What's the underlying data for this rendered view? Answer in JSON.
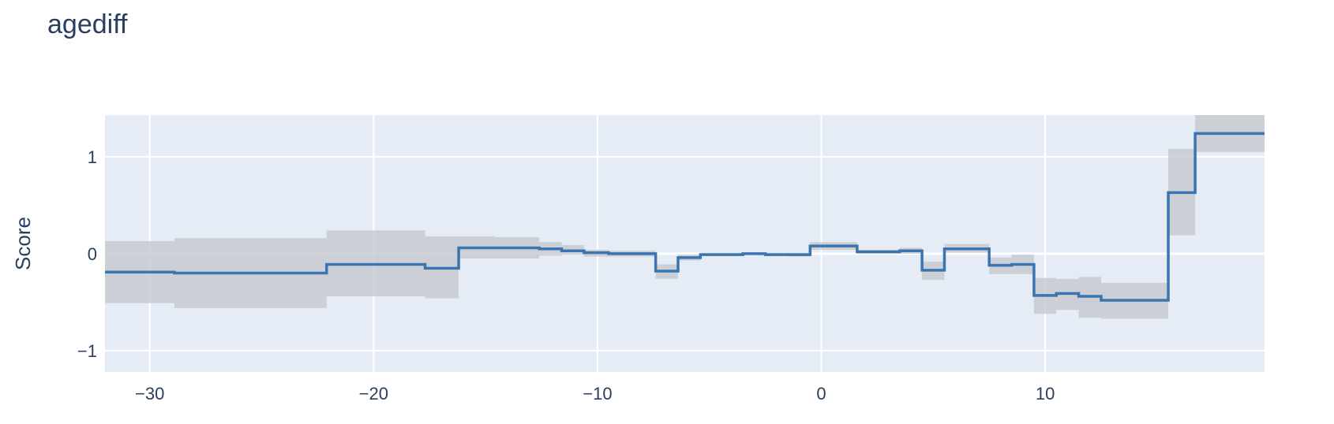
{
  "chart_data": {
    "type": "line",
    "line_shape": "step (hv)",
    "title": "agediff",
    "xlabel": "",
    "ylabel": "Score",
    "xlim": [
      -32,
      19.8
    ],
    "ylim": [
      -1.22,
      1.43
    ],
    "grid": true,
    "plot_background": "#e5ecf6",
    "line_color": "#3b75af",
    "band_color": "#c8cbd0",
    "x_ticks": [
      {
        "value": -30,
        "label": "−30"
      },
      {
        "value": -20,
        "label": "−20"
      },
      {
        "value": -10,
        "label": "−10"
      },
      {
        "value": 0,
        "label": "0"
      },
      {
        "value": 10,
        "label": "10"
      }
    ],
    "y_ticks": [
      {
        "value": 1,
        "label": "1"
      },
      {
        "value": 0,
        "label": "0"
      },
      {
        "value": -1,
        "label": "−1"
      }
    ],
    "series": [
      {
        "segments": [
          {
            "x0": -32.0,
            "x1": -28.9,
            "score": -0.19,
            "lower": -0.51,
            "upper": 0.13
          },
          {
            "x0": -28.9,
            "x1": -22.1,
            "score": -0.2,
            "lower": -0.56,
            "upper": 0.16
          },
          {
            "x0": -22.1,
            "x1": -17.7,
            "score": -0.11,
            "lower": -0.44,
            "upper": 0.24
          },
          {
            "x0": -17.7,
            "x1": -16.2,
            "score": -0.15,
            "lower": -0.46,
            "upper": 0.18
          },
          {
            "x0": -16.2,
            "x1": -14.6,
            "score": 0.06,
            "lower": -0.05,
            "upper": 0.18
          },
          {
            "x0": -14.6,
            "x1": -12.6,
            "score": 0.06,
            "lower": -0.05,
            "upper": 0.17
          },
          {
            "x0": -12.6,
            "x1": -11.6,
            "score": 0.05,
            "lower": -0.02,
            "upper": 0.12
          },
          {
            "x0": -11.6,
            "x1": -10.6,
            "score": 0.03,
            "lower": -0.01,
            "upper": 0.09
          },
          {
            "x0": -10.6,
            "x1": -9.5,
            "score": 0.01,
            "lower": -0.03,
            "upper": 0.04
          },
          {
            "x0": -9.5,
            "x1": -7.4,
            "score": 0.0,
            "lower": -0.03,
            "upper": 0.03
          },
          {
            "x0": -7.4,
            "x1": -6.4,
            "score": -0.18,
            "lower": -0.26,
            "upper": -0.11
          },
          {
            "x0": -6.4,
            "x1": -5.4,
            "score": -0.04,
            "lower": -0.07,
            "upper": -0.01
          },
          {
            "x0": -5.4,
            "x1": -3.5,
            "score": -0.01,
            "lower": -0.02,
            "upper": 0.01
          },
          {
            "x0": -3.5,
            "x1": -2.5,
            "score": 0.0,
            "lower": -0.01,
            "upper": 0.01
          },
          {
            "x0": -2.5,
            "x1": -1.5,
            "score": -0.01,
            "lower": -0.02,
            "upper": 0.01
          },
          {
            "x0": -1.5,
            "x1": -0.5,
            "score": -0.01,
            "lower": -0.03,
            "upper": 0.01
          },
          {
            "x0": -0.5,
            "x1": 1.6,
            "score": 0.08,
            "lower": 0.04,
            "upper": 0.12
          },
          {
            "x0": 1.6,
            "x1": 3.5,
            "score": 0.02,
            "lower": 0.0,
            "upper": 0.04
          },
          {
            "x0": 3.5,
            "x1": 4.5,
            "score": 0.03,
            "lower": 0.0,
            "upper": 0.06
          },
          {
            "x0": 4.5,
            "x1": 5.5,
            "score": -0.17,
            "lower": -0.27,
            "upper": -0.08
          },
          {
            "x0": 5.5,
            "x1": 7.5,
            "score": 0.05,
            "lower": 0.01,
            "upper": 0.1
          },
          {
            "x0": 7.5,
            "x1": 8.5,
            "score": -0.12,
            "lower": -0.21,
            "upper": -0.04
          },
          {
            "x0": 8.5,
            "x1": 9.5,
            "score": -0.11,
            "lower": -0.21,
            "upper": -0.01
          },
          {
            "x0": 9.5,
            "x1": 10.5,
            "score": -0.43,
            "lower": -0.62,
            "upper": -0.25
          },
          {
            "x0": 10.5,
            "x1": 11.5,
            "score": -0.41,
            "lower": -0.58,
            "upper": -0.26
          },
          {
            "x0": 11.5,
            "x1": 12.5,
            "score": -0.44,
            "lower": -0.66,
            "upper": -0.24
          },
          {
            "x0": 12.5,
            "x1": 15.5,
            "score": -0.48,
            "lower": -0.67,
            "upper": -0.3
          },
          {
            "x0": 15.5,
            "x1": 16.7,
            "score": 0.63,
            "lower": 0.19,
            "upper": 1.08
          },
          {
            "x0": 16.7,
            "x1": 19.8,
            "score": 1.24,
            "lower": 1.05,
            "upper": 1.5
          }
        ]
      }
    ]
  }
}
